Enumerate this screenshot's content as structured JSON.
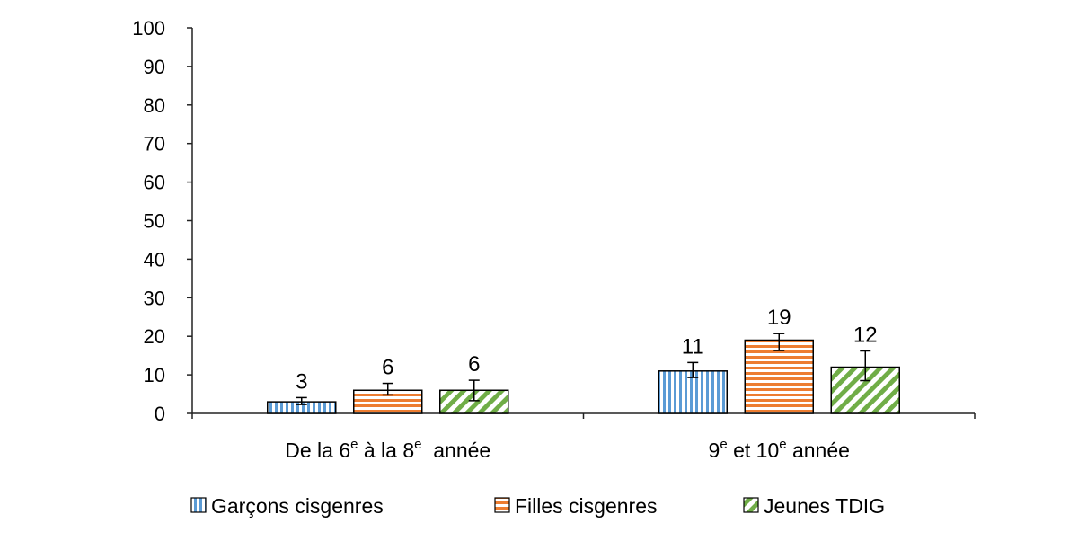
{
  "chart_data": {
    "type": "bar",
    "title": "",
    "xlabel": "",
    "ylabel": "",
    "ylim": [
      0,
      100
    ],
    "yticks": [
      0,
      10,
      20,
      30,
      40,
      50,
      60,
      70,
      80,
      90,
      100
    ],
    "grid": false,
    "legend_position": "bottom",
    "categories": [
      {
        "parts": [
          [
            "De la 6",
            ""
          ],
          [
            "e",
            "sup"
          ],
          [
            " à la 8",
            ""
          ],
          [
            "e",
            "sup"
          ],
          [
            "  année",
            ""
          ]
        ]
      },
      {
        "parts": [
          [
            "9",
            ""
          ],
          [
            "e",
            "sup"
          ],
          [
            " et 10",
            ""
          ],
          [
            "e",
            "sup"
          ],
          [
            " année",
            ""
          ]
        ]
      }
    ],
    "series": [
      {
        "name": "Garçons cisgenres",
        "values": [
          3,
          11
        ],
        "labels": [
          "3",
          "11"
        ],
        "error_low": [
          2.3,
          9.3
        ],
        "error_high": [
          4.1,
          13.2
        ],
        "color": "#5b9bd5",
        "pattern": "vertical-stripes"
      },
      {
        "name": "Filles cisgenres",
        "values": [
          6,
          19
        ],
        "labels": [
          "6",
          "19"
        ],
        "error_low": [
          4.8,
          16.3
        ],
        "error_high": [
          7.8,
          20.7
        ],
        "color": "#ed7d31",
        "pattern": "horizontal-stripes"
      },
      {
        "name": "Jeunes TDIG",
        "values": [
          6,
          12
        ],
        "labels": [
          "6",
          "12"
        ],
        "error_low": [
          3.3,
          8.5
        ],
        "error_high": [
          8.6,
          16.2
        ],
        "color": "#70ad47",
        "pattern": "diagonal-stripes"
      }
    ]
  }
}
